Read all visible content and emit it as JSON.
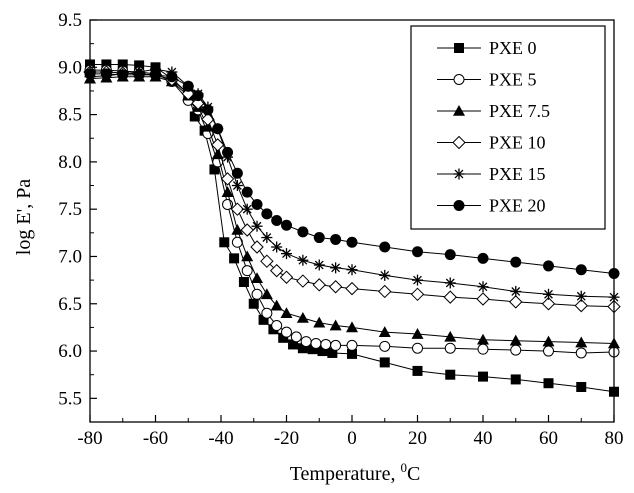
{
  "chart_data": {
    "type": "line",
    "title": "",
    "xlabel": "Temperature, ",
    "xlabel_sup": "0",
    "xlabel_unit": "C",
    "ylabel": "log E', Pa",
    "xlim": [
      -80,
      80
    ],
    "ylim": [
      5.25,
      9.5
    ],
    "xticks": [
      -80,
      -60,
      -40,
      -20,
      0,
      20,
      40,
      60,
      80
    ],
    "yticks": [
      5.5,
      6.0,
      6.5,
      7.0,
      7.5,
      8.0,
      8.5,
      9.0,
      9.5
    ],
    "xtick_labels": [
      "-80",
      "-60",
      "-40",
      "-20",
      "0",
      "20",
      "40",
      "60",
      "80"
    ],
    "ytick_labels": [
      "5.5",
      "6.0",
      "6.5",
      "7.0",
      "7.5",
      "8.0",
      "8.5",
      "9.0",
      "9.5"
    ],
    "grid": false,
    "legend_position": "top-right",
    "series": [
      {
        "name": "PXE 0",
        "marker": "filled-square",
        "x": [
          -80,
          -75,
          -70,
          -65,
          -60,
          -55,
          -50,
          -48,
          -45,
          -42,
          -39,
          -36,
          -33,
          -30,
          -27,
          -24,
          -21,
          -18,
          -15,
          -12,
          -9,
          -6,
          0,
          10,
          20,
          30,
          40,
          50,
          60,
          70,
          80
        ],
        "y": [
          9.03,
          9.03,
          9.03,
          9.02,
          9.0,
          8.88,
          8.72,
          8.48,
          8.33,
          7.92,
          7.15,
          6.98,
          6.73,
          6.5,
          6.33,
          6.23,
          6.14,
          6.07,
          6.03,
          6.02,
          6.0,
          5.98,
          5.97,
          5.88,
          5.79,
          5.75,
          5.73,
          5.7,
          5.66,
          5.62,
          5.57
        ]
      },
      {
        "name": "PXE 5",
        "marker": "open-circle",
        "x": [
          -80,
          -75,
          -70,
          -65,
          -60,
          -55,
          -50,
          -47,
          -44,
          -41,
          -38,
          -35,
          -32,
          -29,
          -26,
          -23,
          -20,
          -17,
          -14,
          -11,
          -8,
          -5,
          0,
          10,
          20,
          30,
          40,
          50,
          60,
          70,
          80
        ],
        "y": [
          8.97,
          8.97,
          8.96,
          8.95,
          8.93,
          8.85,
          8.65,
          8.55,
          8.3,
          8.0,
          7.55,
          7.15,
          6.85,
          6.6,
          6.4,
          6.27,
          6.2,
          6.15,
          6.1,
          6.08,
          6.07,
          6.06,
          6.06,
          6.05,
          6.03,
          6.03,
          6.02,
          6.01,
          6.0,
          5.98,
          5.99
        ]
      },
      {
        "name": "PXE 7.5",
        "marker": "filled-triangle",
        "x": [
          -80,
          -75,
          -70,
          -65,
          -60,
          -55,
          -50,
          -47,
          -44,
          -41,
          -38,
          -35,
          -32,
          -29,
          -26,
          -23,
          -20,
          -15,
          -10,
          -5,
          0,
          10,
          20,
          30,
          40,
          50,
          60,
          70,
          80
        ],
        "y": [
          8.88,
          8.89,
          8.9,
          8.9,
          8.9,
          8.85,
          8.7,
          8.58,
          8.37,
          8.08,
          7.68,
          7.28,
          7.0,
          6.77,
          6.6,
          6.48,
          6.4,
          6.35,
          6.3,
          6.27,
          6.25,
          6.2,
          6.18,
          6.15,
          6.12,
          6.11,
          6.1,
          6.09,
          6.08
        ]
      },
      {
        "name": "PXE 10",
        "marker": "open-diamond",
        "x": [
          -80,
          -75,
          -70,
          -65,
          -60,
          -55,
          -50,
          -47,
          -44,
          -41,
          -38,
          -35,
          -32,
          -29,
          -26,
          -23,
          -20,
          -15,
          -10,
          -5,
          0,
          10,
          20,
          30,
          40,
          50,
          60,
          70,
          80
        ],
        "y": [
          8.95,
          8.95,
          8.94,
          8.93,
          8.92,
          8.87,
          8.72,
          8.62,
          8.45,
          8.18,
          7.82,
          7.5,
          7.28,
          7.1,
          6.95,
          6.85,
          6.78,
          6.74,
          6.7,
          6.68,
          6.66,
          6.63,
          6.6,
          6.57,
          6.55,
          6.52,
          6.5,
          6.48,
          6.47
        ]
      },
      {
        "name": "PXE 15",
        "marker": "asterisk",
        "x": [
          -80,
          -75,
          -70,
          -65,
          -60,
          -55,
          -50,
          -47,
          -44,
          -41,
          -38,
          -35,
          -32,
          -29,
          -26,
          -23,
          -20,
          -15,
          -10,
          -5,
          0,
          10,
          20,
          30,
          40,
          50,
          60,
          70,
          80
        ],
        "y": [
          8.9,
          8.91,
          8.93,
          8.95,
          8.98,
          8.95,
          8.8,
          8.72,
          8.58,
          8.35,
          8.05,
          7.75,
          7.5,
          7.32,
          7.2,
          7.1,
          7.03,
          6.96,
          6.91,
          6.88,
          6.86,
          6.8,
          6.75,
          6.72,
          6.68,
          6.63,
          6.6,
          6.58,
          6.57
        ]
      },
      {
        "name": "PXE 20",
        "marker": "filled-circle",
        "x": [
          -80,
          -75,
          -70,
          -65,
          -60,
          -55,
          -50,
          -47,
          -44,
          -41,
          -38,
          -35,
          -32,
          -29,
          -26,
          -23,
          -20,
          -15,
          -10,
          -5,
          0,
          10,
          20,
          30,
          40,
          50,
          60,
          70,
          80
        ],
        "y": [
          8.93,
          8.93,
          8.92,
          8.92,
          8.92,
          8.9,
          8.8,
          8.7,
          8.55,
          8.35,
          8.1,
          7.88,
          7.68,
          7.55,
          7.45,
          7.38,
          7.33,
          7.26,
          7.2,
          7.18,
          7.15,
          7.1,
          7.05,
          7.02,
          6.98,
          6.94,
          6.9,
          6.86,
          6.82
        ]
      }
    ]
  }
}
